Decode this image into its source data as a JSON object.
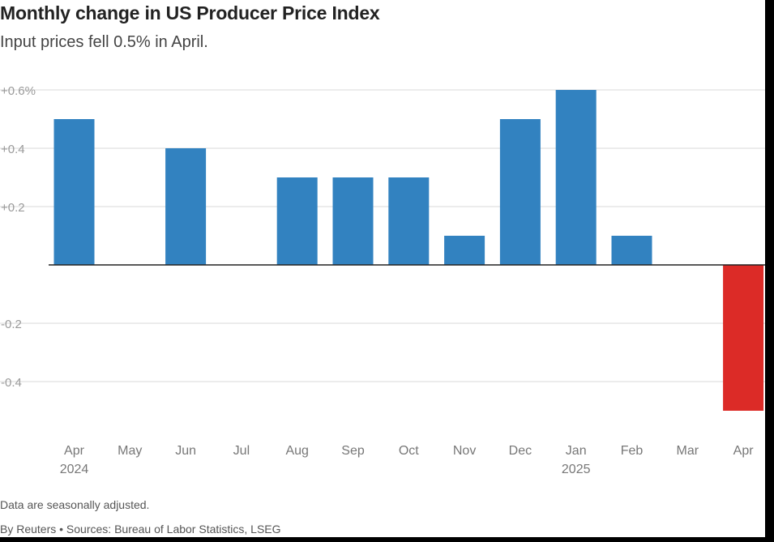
{
  "chart_data": {
    "type": "bar",
    "title": "Monthly change in US Producer Price Index",
    "subtitle": "Input prices fell 0.5% in April.",
    "categories": [
      "Apr",
      "May",
      "Jun",
      "Jul",
      "Aug",
      "Sep",
      "Oct",
      "Nov",
      "Dec",
      "Jan",
      "Feb",
      "Mar",
      "Apr"
    ],
    "year_labels": [
      "2024",
      "",
      "",
      "",
      "",
      "",
      "",
      "",
      "",
      "2025",
      "",
      "",
      ""
    ],
    "values": [
      0.5,
      0.0,
      0.4,
      0.0,
      0.3,
      0.3,
      0.3,
      0.1,
      0.5,
      0.6,
      0.1,
      0.0,
      -0.5
    ],
    "ylim": [
      -0.5,
      0.6
    ],
    "yticks": [
      0.6,
      0.4,
      0.2,
      -0.2,
      -0.4
    ],
    "ytick_labels": [
      "+0.6%",
      "+0.4",
      "+0.2",
      "-0.2",
      "-0.4"
    ],
    "grid": true,
    "legend": "none",
    "xlabel": "",
    "ylabel": "",
    "colors": {
      "positive": "#3282c0",
      "negative": "#dc2b27"
    }
  },
  "footer": {
    "note": "Data are seasonally adjusted.",
    "credit": "By Reuters • Sources: Bureau of Labor Statistics, LSEG"
  }
}
